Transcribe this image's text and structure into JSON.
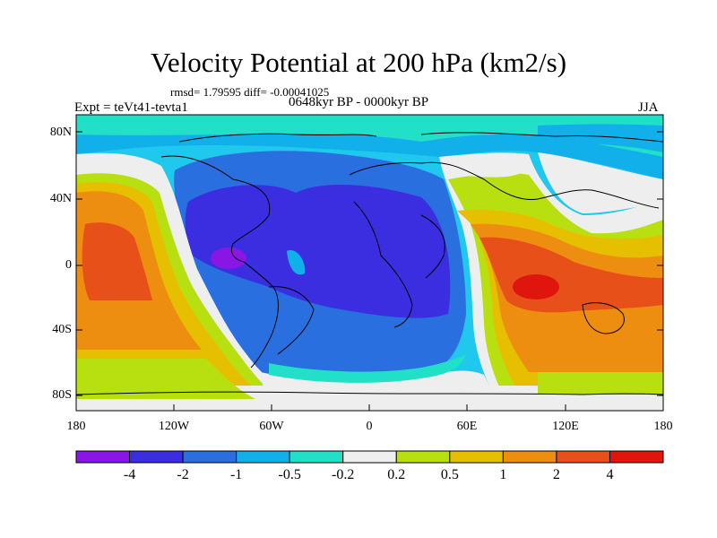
{
  "title": "Velocity Potential at 200 hPa (km2/s)",
  "subtitle": "rmsd= 1.79595 diff= -0.00041025",
  "left_label": "Expt = teVt41-tevta1",
  "center_label": "0648kyr BP - 0000kyr BP",
  "right_label": "JJA",
  "lat_ticks": [
    "80N",
    "40N",
    "0",
    "40S",
    "80S"
  ],
  "lon_ticks": [
    "180",
    "120W",
    "60W",
    "0",
    "60E",
    "120E",
    "180"
  ],
  "colorbar": {
    "labels": [
      "-4",
      "-2",
      "-1",
      "-0.5",
      "-0.2",
      "0.2",
      "0.5",
      "1",
      "2",
      "4"
    ],
    "colors": [
      "#8a16e6",
      "#3a2ee0",
      "#2a6fe0",
      "#12b0ea",
      "#22e0c8",
      "#eeeeee",
      "#b8e010",
      "#e6c000",
      "#ee8e10",
      "#e8501a",
      "#e0160e"
    ]
  },
  "colors": {
    "low_strong": "#3a2ee0",
    "low_center": "#8a16e6",
    "high_strong": "#e8501a",
    "neutral": "#eeeeee"
  }
}
